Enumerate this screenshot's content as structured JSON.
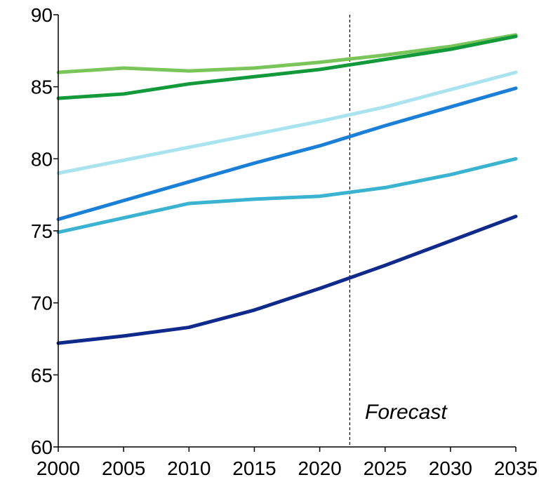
{
  "chart_data": {
    "type": "line",
    "title": "",
    "xlabel": "",
    "ylabel": "",
    "xlim": [
      2000,
      2035
    ],
    "ylim": [
      60,
      90
    ],
    "x_ticks": [
      2000,
      2005,
      2010,
      2015,
      2020,
      2025,
      2030,
      2035
    ],
    "y_ticks": [
      60,
      65,
      70,
      75,
      80,
      85,
      90
    ],
    "grid": false,
    "legend": "none",
    "forecast_start": 2022.3,
    "annotation": "Forecast",
    "series": [
      {
        "color": "#7ac55a",
        "x": [
          2000,
          2005,
          2010,
          2015,
          2020,
          2025,
          2030,
          2035
        ],
        "values": [
          86.0,
          86.3,
          86.1,
          86.3,
          86.7,
          87.2,
          87.8,
          88.6
        ]
      },
      {
        "color": "#129a3a",
        "x": [
          2000,
          2005,
          2010,
          2015,
          2020,
          2025,
          2030,
          2035
        ],
        "values": [
          84.2,
          84.5,
          85.2,
          85.7,
          86.2,
          86.9,
          87.6,
          88.5
        ]
      },
      {
        "color": "#a9e3f0",
        "x": [
          2000,
          2005,
          2010,
          2015,
          2020,
          2025,
          2030,
          2035
        ],
        "values": [
          79.0,
          79.9,
          80.8,
          81.7,
          82.6,
          83.6,
          84.8,
          86.0
        ]
      },
      {
        "color": "#1a7fd6",
        "x": [
          2000,
          2005,
          2010,
          2015,
          2020,
          2025,
          2030,
          2035
        ],
        "values": [
          75.8,
          77.1,
          78.4,
          79.7,
          80.9,
          82.3,
          83.6,
          84.9
        ]
      },
      {
        "color": "#3ab3d0",
        "x": [
          2000,
          2005,
          2010,
          2015,
          2020,
          2025,
          2030,
          2035
        ],
        "values": [
          74.9,
          75.9,
          76.9,
          77.2,
          77.4,
          78.0,
          78.9,
          80.0
        ]
      },
      {
        "color": "#0f2a8a",
        "x": [
          2000,
          2005,
          2010,
          2015,
          2020,
          2025,
          2030,
          2035
        ],
        "values": [
          67.2,
          67.7,
          68.3,
          69.5,
          71.0,
          72.6,
          74.3,
          76.0
        ]
      }
    ]
  }
}
